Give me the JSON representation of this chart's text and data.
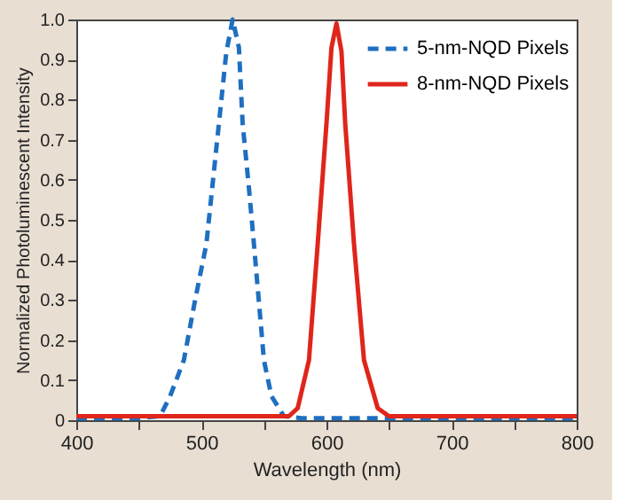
{
  "chart_data": {
    "type": "line",
    "xlabel": "Wavelength (nm)",
    "ylabel": "Normalized Photoluminescent Intensity",
    "xlim": [
      400,
      800
    ],
    "ylim": [
      0,
      1
    ],
    "xticks": [
      400,
      {
        "value": 450,
        "label": null
      },
      500,
      {
        "value": 550,
        "label": null
      },
      600,
      {
        "value": 650,
        "label": null
      },
      700,
      {
        "value": 750,
        "label": null
      },
      800
    ],
    "yticks": [
      0,
      0.1,
      0.2,
      0.3,
      0.4,
      0.5,
      0.6,
      0.7,
      0.8,
      0.9,
      {
        "value": 1,
        "label": "1.0"
      }
    ],
    "grid": false,
    "legend": "top right",
    "marker": "none",
    "series": [
      {
        "name": "5-nm-NQD Pixels",
        "color": "#1f6fc0",
        "line_style": "dashed",
        "x": [
          400,
          450,
          467,
          475,
          486,
          495,
          504,
          514,
          520,
          525,
          530,
          533,
          538,
          542,
          550,
          556,
          566,
          580,
          650,
          700,
          800
        ],
        "values": [
          0.005,
          0.005,
          0.01,
          0.06,
          0.15,
          0.3,
          0.44,
          0.74,
          0.92,
          1.0,
          0.93,
          0.74,
          0.58,
          0.44,
          0.15,
          0.06,
          0.01,
          0.005,
          0.005,
          0.005,
          0.005
        ]
      },
      {
        "name": "8-nm-NQD Pixels",
        "color": "#e0251b",
        "line_style": "solid",
        "x": [
          400,
          500,
          570,
          577,
          586,
          593,
          600,
          604,
          608,
          612,
          615,
          622,
          630,
          641,
          650,
          700,
          800
        ],
        "values": [
          0.01,
          0.01,
          0.01,
          0.03,
          0.15,
          0.44,
          0.74,
          0.93,
          0.99,
          0.92,
          0.74,
          0.44,
          0.15,
          0.03,
          0.01,
          0.01,
          0.01
        ]
      }
    ]
  }
}
